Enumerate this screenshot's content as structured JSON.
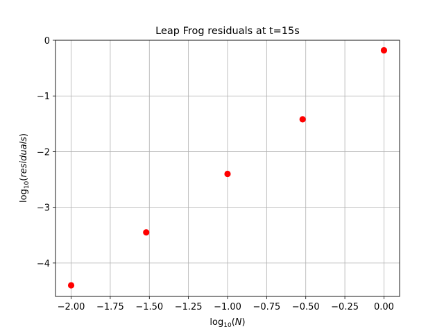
{
  "chart_data": {
    "type": "scatter",
    "title": "Leap Frog residuals at t=15s",
    "xlabel": {
      "prefix": "log",
      "sub": "10",
      "arg": "N"
    },
    "ylabel": {
      "prefix": "log",
      "sub": "10",
      "arg": "residuals"
    },
    "xlim": [
      -2.1,
      0.1
    ],
    "ylim": [
      -4.6,
      0.0
    ],
    "xticks": [
      -2.0,
      -1.75,
      -1.5,
      -1.25,
      -1.0,
      -0.75,
      -0.5,
      -0.25,
      0.0
    ],
    "xtick_labels": [
      "−2.00",
      "−1.75",
      "−1.50",
      "−1.25",
      "−1.00",
      "−0.75",
      "−0.50",
      "−0.25",
      "0.00"
    ],
    "yticks": [
      0,
      -1,
      -2,
      -3,
      -4
    ],
    "ytick_labels": [
      "0",
      "−1",
      "−2",
      "−3",
      "−4"
    ],
    "grid": true,
    "marker_color": "#ff0000",
    "series": [
      {
        "x": [
          -2.0,
          -1.52,
          -1.0,
          -0.52,
          0.0
        ],
        "y": [
          -4.4,
          -3.45,
          -2.4,
          -1.42,
          -0.18
        ]
      }
    ]
  }
}
